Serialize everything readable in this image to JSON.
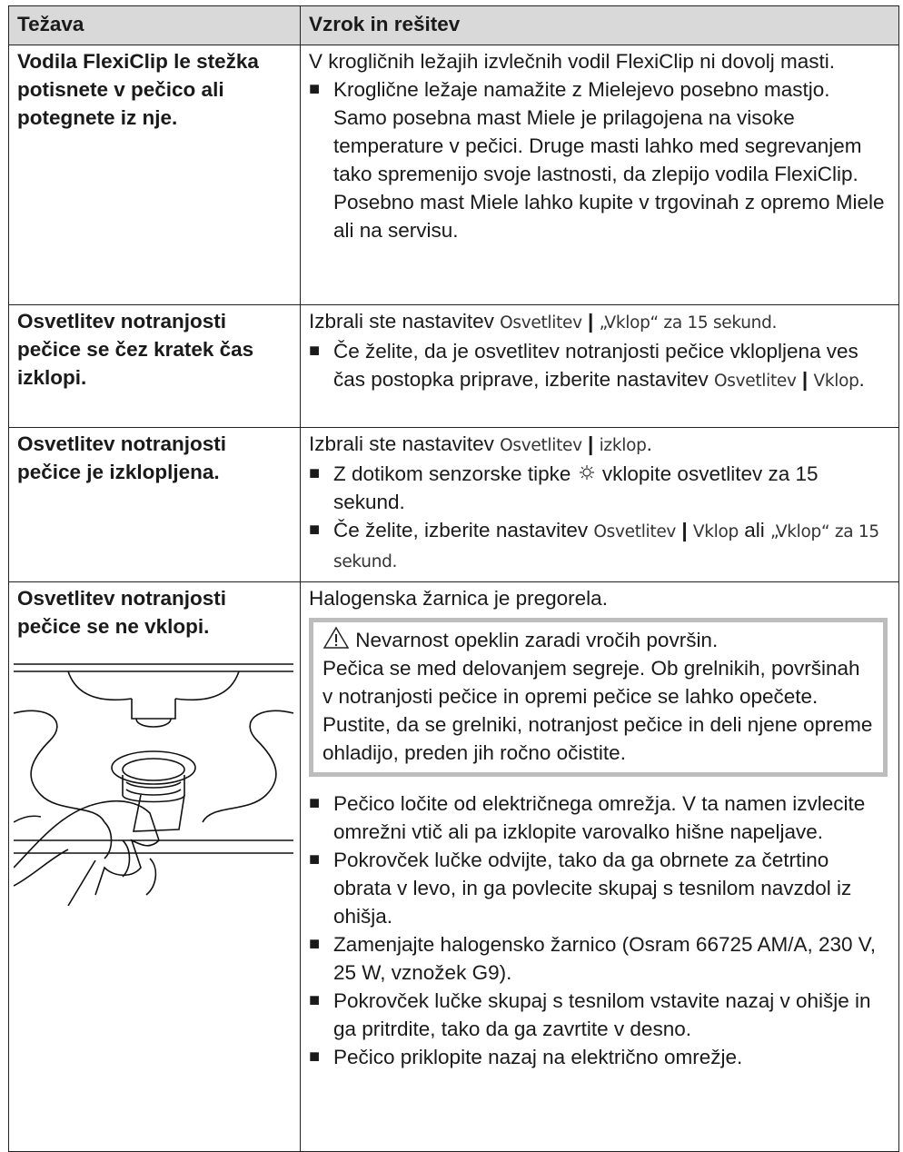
{
  "header": {
    "problem": "Težava",
    "solution": "Vzrok in rešitev"
  },
  "rows": [
    {
      "problem": "Vodila FlexiClip le stežka potisnete v pečico ali potegnete iz nje.",
      "cause": [
        "V krogličnih ležajih izvlečnih vodil FlexiClip ni dovolj masti."
      ],
      "steps": [
        [
          "Kroglične ležaje namažite z Mielejevo posebno mastjo.",
          "Samo posebna mast Miele je prilagojena na visoke temperature v pečici. Druge masti lahko med segrevanjem tako spremenijo svoje lastnosti, da zlepijo vodila FlexiClip. Posebno mast Miele lahko kupite v trgovinah z opremo Miele ali na servisu."
        ]
      ]
    },
    {
      "problem": "Osvetlitev notranjosti pečice se čez kratek čas izklopi.",
      "cause": [
        "Izbrali ste nastavitev",
        "Osvetlitev",
        "|",
        "„Vklop“ za 15 sekund."
      ],
      "steps": [
        [
          "Če želite, da je osvetlitev notranjosti pečice vklopljena ves čas postopka priprave, izberite nastavitev",
          "Osvetlitev",
          "|",
          "Vklop",
          "."
        ]
      ]
    },
    {
      "problem": "Osvetlitev notranjosti pečice je izklopljena.",
      "cause": [
        "Izbrali ste nastavitev",
        "Osvetlitev",
        "|",
        "izklop",
        "."
      ],
      "steps": [
        [
          "Z dotikom senzorske tipke",
          "vklopite osvetlitev za 15 sekund."
        ],
        [
          "Če želite, izberite nastavitev",
          "Osvetlitev",
          "|",
          "Vklop",
          "ali",
          "„Vklop“ za 15 sekund."
        ]
      ]
    },
    {
      "problem": "Osvetlitev notranjosti pečice se ne vklopi.",
      "cause": [
        "Halogenska žarnica je pregorela."
      ],
      "warning": {
        "title": "Nevarnost opeklin zaradi vročih površin.",
        "paragraphs": [
          "Pečica se med delovanjem segreje. Ob grelnikih, površinah v notranjosti pečice in opremi pečice se lahko opečete.",
          "Pustite, da se grelniki, notranjost pečice in deli njene opreme ohladijo, preden jih ročno očistite."
        ]
      },
      "steps": [
        [
          "Pečico ločite od električnega omrežja. V ta namen izvlecite omrežni vtič ali pa izklopite varovalko hišne napeljave."
        ],
        [
          "Pokrovček lučke odvijte, tako da ga obrnete za četrtino obrata v levo, in ga povlecite skupaj s tesnilom navzdol iz ohišja."
        ],
        [
          "Zamenjajte halogensko žarnico (Osram 66725 AM/A, 230 V, 25 W, vznožek G9)."
        ],
        [
          "Pokrovček lučke skupaj s tesnilom vstavite nazaj v ohišje in ga pritrdite, tako da ga zavrtite v desno."
        ],
        [
          "Pečico priklopite nazaj na električno omrežje."
        ]
      ]
    }
  ]
}
